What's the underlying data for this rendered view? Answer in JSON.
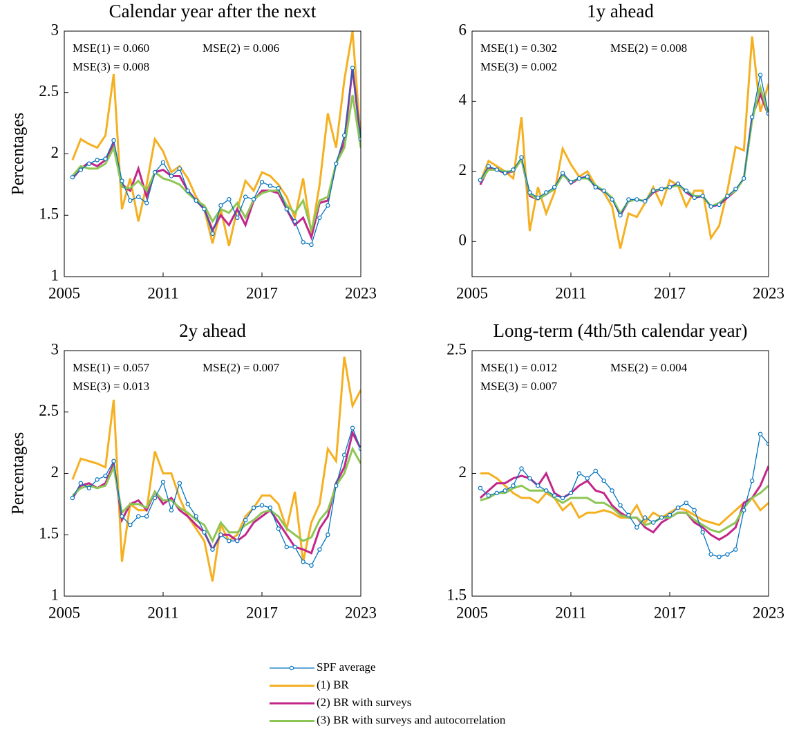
{
  "chart_data": [
    {
      "type": "line",
      "title": "Calendar year after the next",
      "ylabel": "Percentages",
      "annotations": [
        "MSE(1) = 0.060",
        "MSE(2) = 0.006",
        "MSE(3) = 0.008"
      ],
      "x": [
        2005.5,
        2006,
        2006.5,
        2007,
        2007.5,
        2008,
        2008.5,
        2009,
        2009.5,
        2010,
        2010.5,
        2011,
        2011.5,
        2012,
        2012.5,
        2013,
        2013.5,
        2014,
        2014.5,
        2015,
        2015.5,
        2016,
        2016.5,
        2017,
        2017.5,
        2018,
        2018.5,
        2019,
        2019.5,
        2020,
        2020.5,
        2021,
        2021.5,
        2022,
        2022.5,
        2023
      ],
      "xlim": [
        2005,
        2023
      ],
      "xticks": [
        2005,
        2011,
        2017,
        2023
      ],
      "ylim": [
        1,
        3
      ],
      "yticks": [
        1,
        1.5,
        2,
        2.5,
        3
      ],
      "series": [
        {
          "name": "SPF average",
          "color": "#0072bd",
          "markers": true,
          "values": [
            1.81,
            1.87,
            1.92,
            1.95,
            1.96,
            2.11,
            1.78,
            1.62,
            1.65,
            1.6,
            1.85,
            1.93,
            1.82,
            1.88,
            1.7,
            1.62,
            1.55,
            1.35,
            1.58,
            1.63,
            1.48,
            1.65,
            1.63,
            1.77,
            1.74,
            1.72,
            1.55,
            1.45,
            1.28,
            1.26,
            1.48,
            1.58,
            1.92,
            2.15,
            2.7,
            2.12
          ]
        },
        {
          "name": "(1) BR",
          "color": "#f5b021",
          "values": [
            1.95,
            2.12,
            2.08,
            2.05,
            2.15,
            2.65,
            1.55,
            1.8,
            1.45,
            1.75,
            2.12,
            2.02,
            1.85,
            1.9,
            1.8,
            1.65,
            1.55,
            1.27,
            1.55,
            1.25,
            1.55,
            1.78,
            1.7,
            1.85,
            1.82,
            1.75,
            1.65,
            1.48,
            1.8,
            1.35,
            1.75,
            2.33,
            2.05,
            2.6,
            3.0,
            2.1
          ]
        },
        {
          "name": "(2) BR with surveys",
          "color": "#c2268b",
          "values": [
            1.8,
            1.88,
            1.93,
            1.9,
            1.95,
            2.08,
            1.75,
            1.7,
            1.88,
            1.65,
            1.85,
            1.87,
            1.82,
            1.82,
            1.7,
            1.62,
            1.55,
            1.38,
            1.5,
            1.42,
            1.55,
            1.42,
            1.62,
            1.7,
            1.7,
            1.68,
            1.55,
            1.42,
            1.48,
            1.32,
            1.6,
            1.62,
            1.92,
            2.1,
            2.7,
            2.1
          ]
        },
        {
          "name": "(3) BR with surveys and autocorrelation",
          "color": "#8dc655",
          "values": [
            1.82,
            1.9,
            1.88,
            1.88,
            1.92,
            2.05,
            1.73,
            1.72,
            1.78,
            1.7,
            1.85,
            1.8,
            1.78,
            1.75,
            1.68,
            1.62,
            1.58,
            1.45,
            1.55,
            1.52,
            1.6,
            1.48,
            1.63,
            1.68,
            1.7,
            1.7,
            1.58,
            1.52,
            1.62,
            1.38,
            1.62,
            1.65,
            1.92,
            2.05,
            2.48,
            2.05
          ]
        }
      ]
    },
    {
      "type": "line",
      "title": "1y ahead",
      "annotations": [
        "MSE(1) = 0.302",
        "MSE(2) = 0.008",
        "MSE(3) = 0.002"
      ],
      "x": [
        2005.5,
        2006,
        2006.5,
        2007,
        2007.5,
        2008,
        2008.5,
        2009,
        2009.5,
        2010,
        2010.5,
        2011,
        2011.5,
        2012,
        2012.5,
        2013,
        2013.5,
        2014,
        2014.5,
        2015,
        2015.5,
        2016,
        2016.5,
        2017,
        2017.5,
        2018,
        2018.5,
        2019,
        2019.5,
        2020,
        2020.5,
        2021,
        2021.5,
        2022,
        2022.5,
        2023
      ],
      "xlim": [
        2005,
        2023
      ],
      "xticks": [
        2005,
        2011,
        2017,
        2023
      ],
      "ylim": [
        -1,
        6
      ],
      "yticks": [
        0,
        2,
        4,
        6
      ],
      "series": [
        {
          "color": "#0072bd",
          "markers": true,
          "values": [
            1.75,
            2.15,
            2.05,
            1.95,
            2.05,
            2.4,
            1.4,
            1.25,
            1.4,
            1.55,
            1.95,
            1.7,
            1.8,
            1.85,
            1.55,
            1.45,
            1.2,
            0.75,
            1.2,
            1.2,
            1.15,
            1.45,
            1.5,
            1.55,
            1.65,
            1.45,
            1.25,
            1.3,
            1.0,
            1.05,
            1.3,
            1.5,
            1.8,
            3.55,
            4.75,
            3.65
          ]
        },
        {
          "color": "#f5b021",
          "values": [
            1.7,
            2.3,
            2.15,
            2.0,
            1.8,
            3.55,
            0.3,
            1.55,
            0.8,
            1.4,
            2.65,
            2.2,
            1.85,
            2.0,
            1.6,
            1.4,
            1.0,
            -0.2,
            0.8,
            0.7,
            1.1,
            1.55,
            1.05,
            1.75,
            1.6,
            1.0,
            1.45,
            1.45,
            0.1,
            0.45,
            1.45,
            2.7,
            2.6,
            5.85,
            3.7,
            4.5
          ]
        },
        {
          "color": "#c2268b",
          "values": [
            1.62,
            2.1,
            2.05,
            1.95,
            2.0,
            2.35,
            1.3,
            1.2,
            1.35,
            1.5,
            1.95,
            1.65,
            1.8,
            1.85,
            1.55,
            1.45,
            1.25,
            0.75,
            1.15,
            1.2,
            1.15,
            1.4,
            1.5,
            1.55,
            1.65,
            1.4,
            1.25,
            1.3,
            1.0,
            1.05,
            1.25,
            1.45,
            1.8,
            3.55,
            4.2,
            3.6
          ]
        },
        {
          "color": "#8dc655",
          "values": [
            1.7,
            2.05,
            2.05,
            2.0,
            2.0,
            2.35,
            1.35,
            1.2,
            1.35,
            1.5,
            1.9,
            1.7,
            1.8,
            1.8,
            1.6,
            1.45,
            1.25,
            0.8,
            1.15,
            1.2,
            1.15,
            1.45,
            1.5,
            1.55,
            1.6,
            1.45,
            1.3,
            1.3,
            1.0,
            1.1,
            1.3,
            1.45,
            1.8,
            3.45,
            4.4,
            3.6
          ]
        }
      ]
    },
    {
      "type": "line",
      "title": "2y ahead",
      "ylabel": "Percentages",
      "annotations": [
        "MSE(1) = 0.057",
        "MSE(2) = 0.007",
        "MSE(3) = 0.013"
      ],
      "x": [
        2005.5,
        2006,
        2006.5,
        2007,
        2007.5,
        2008,
        2008.5,
        2009,
        2009.5,
        2010,
        2010.5,
        2011,
        2011.5,
        2012,
        2012.5,
        2013,
        2013.5,
        2014,
        2014.5,
        2015,
        2015.5,
        2016,
        2016.5,
        2017,
        2017.5,
        2018,
        2018.5,
        2019,
        2019.5,
        2020,
        2020.5,
        2021,
        2021.5,
        2022,
        2022.5,
        2023
      ],
      "xlim": [
        2005,
        2023
      ],
      "xticks": [
        2005,
        2011,
        2017,
        2023
      ],
      "ylim": [
        1,
        3
      ],
      "yticks": [
        1,
        1.5,
        2,
        2.5,
        3
      ],
      "series": [
        {
          "color": "#0072bd",
          "markers": true,
          "values": [
            1.8,
            1.92,
            1.88,
            1.95,
            1.98,
            2.1,
            1.65,
            1.58,
            1.65,
            1.65,
            1.8,
            1.93,
            1.7,
            1.92,
            1.75,
            1.65,
            1.52,
            1.38,
            1.5,
            1.45,
            1.45,
            1.62,
            1.72,
            1.74,
            1.72,
            1.55,
            1.4,
            1.4,
            1.28,
            1.25,
            1.38,
            1.5,
            1.9,
            2.15,
            2.37,
            2.2
          ]
        },
        {
          "color": "#f5b021",
          "values": [
            1.95,
            2.12,
            2.1,
            2.08,
            2.05,
            2.6,
            1.28,
            1.75,
            1.7,
            1.7,
            2.18,
            2.0,
            2.0,
            1.8,
            1.65,
            1.55,
            1.45,
            1.12,
            1.58,
            1.45,
            1.5,
            1.65,
            1.72,
            1.82,
            1.82,
            1.75,
            1.55,
            1.85,
            1.28,
            1.6,
            1.75,
            2.2,
            2.1,
            2.95,
            2.55,
            2.68
          ]
        },
        {
          "color": "#c2268b",
          "values": [
            1.8,
            1.9,
            1.92,
            1.88,
            1.92,
            2.08,
            1.62,
            1.75,
            1.78,
            1.7,
            1.85,
            1.75,
            1.8,
            1.7,
            1.65,
            1.58,
            1.52,
            1.38,
            1.5,
            1.5,
            1.45,
            1.5,
            1.6,
            1.65,
            1.7,
            1.6,
            1.5,
            1.4,
            1.38,
            1.35,
            1.55,
            1.65,
            1.92,
            2.05,
            2.33,
            2.2
          ]
        },
        {
          "color": "#8dc655",
          "values": [
            1.82,
            1.88,
            1.9,
            1.88,
            1.9,
            2.05,
            1.68,
            1.75,
            1.75,
            1.72,
            1.85,
            1.78,
            1.78,
            1.72,
            1.68,
            1.62,
            1.58,
            1.45,
            1.6,
            1.52,
            1.52,
            1.58,
            1.62,
            1.68,
            1.7,
            1.65,
            1.55,
            1.5,
            1.45,
            1.48,
            1.62,
            1.7,
            1.9,
            2.0,
            2.2,
            2.08
          ]
        }
      ]
    },
    {
      "type": "line",
      "title": "Long-term (4th/5th calendar year)",
      "annotations": [
        "MSE(1) = 0.012",
        "MSE(2) = 0.004",
        "MSE(3) = 0.007"
      ],
      "x": [
        2005.5,
        2006,
        2006.5,
        2007,
        2007.5,
        2008,
        2008.5,
        2009,
        2009.5,
        2010,
        2010.5,
        2011,
        2011.5,
        2012,
        2012.5,
        2013,
        2013.5,
        2014,
        2014.5,
        2015,
        2015.5,
        2016,
        2016.5,
        2017,
        2017.5,
        2018,
        2018.5,
        2019,
        2019.5,
        2020,
        2020.5,
        2021,
        2021.5,
        2022,
        2022.5,
        2023
      ],
      "xlim": [
        2005,
        2023
      ],
      "xticks": [
        2005,
        2011,
        2017,
        2023
      ],
      "ylim": [
        1.5,
        2.5
      ],
      "yticks": [
        1.5,
        2,
        2.5
      ],
      "series": [
        {
          "color": "#0072bd",
          "markers": true,
          "values": [
            1.94,
            1.91,
            1.92,
            1.93,
            1.95,
            2.02,
            1.98,
            1.95,
            1.93,
            1.91,
            1.9,
            1.92,
            2.0,
            1.98,
            2.01,
            1.97,
            1.93,
            1.87,
            1.83,
            1.78,
            1.82,
            1.8,
            1.82,
            1.83,
            1.86,
            1.88,
            1.85,
            1.76,
            1.67,
            1.66,
            1.67,
            1.69,
            1.85,
            1.97,
            2.16,
            2.12
          ]
        },
        {
          "color": "#f5b021",
          "values": [
            2.0,
            2.0,
            1.98,
            1.95,
            1.92,
            1.9,
            1.9,
            1.88,
            1.92,
            1.9,
            1.85,
            1.88,
            1.82,
            1.84,
            1.84,
            1.85,
            1.84,
            1.82,
            1.82,
            1.87,
            1.8,
            1.84,
            1.82,
            1.84,
            1.86,
            1.85,
            1.83,
            1.81,
            1.8,
            1.79,
            1.82,
            1.85,
            1.88,
            1.9,
            1.85,
            1.88
          ]
        },
        {
          "color": "#c2268b",
          "values": [
            1.9,
            1.93,
            1.96,
            1.96,
            1.98,
            1.99,
            1.98,
            1.95,
            2.0,
            1.92,
            1.9,
            1.92,
            1.95,
            1.97,
            1.93,
            1.92,
            1.87,
            1.84,
            1.82,
            1.82,
            1.78,
            1.76,
            1.8,
            1.82,
            1.84,
            1.84,
            1.8,
            1.78,
            1.75,
            1.73,
            1.75,
            1.78,
            1.88,
            1.9,
            1.95,
            2.03
          ]
        },
        {
          "color": "#8dc655",
          "values": [
            1.89,
            1.9,
            1.92,
            1.92,
            1.94,
            1.95,
            1.93,
            1.93,
            1.93,
            1.9,
            1.88,
            1.9,
            1.9,
            1.9,
            1.88,
            1.88,
            1.86,
            1.83,
            1.82,
            1.82,
            1.79,
            1.8,
            1.82,
            1.82,
            1.84,
            1.84,
            1.81,
            1.79,
            1.77,
            1.76,
            1.78,
            1.8,
            1.86,
            1.9,
            1.92,
            1.95
          ]
        }
      ]
    }
  ]
}
